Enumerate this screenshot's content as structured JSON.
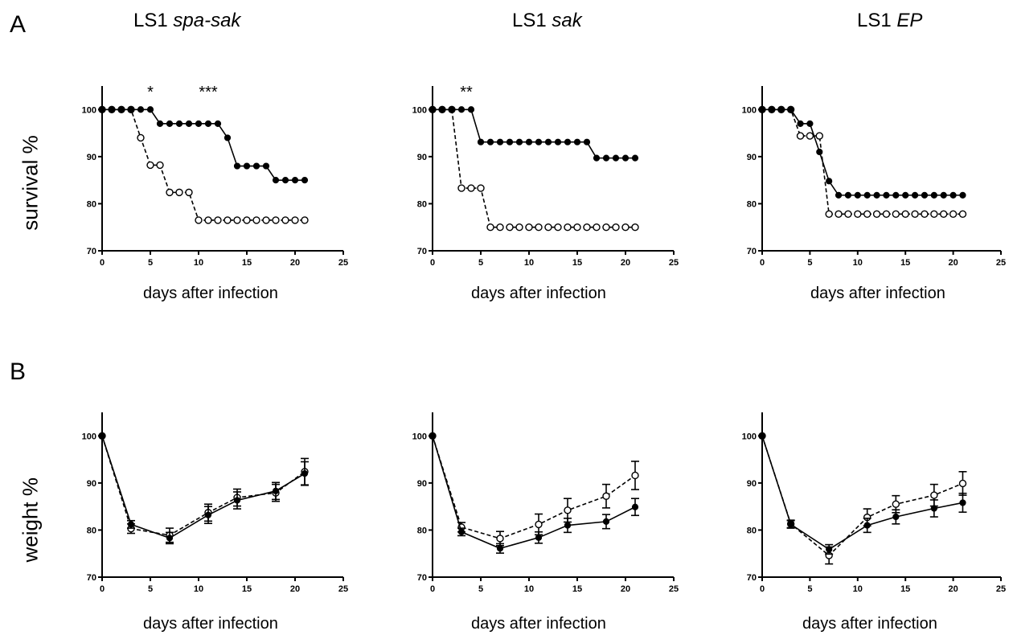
{
  "figure": {
    "panel_a": "A",
    "panel_b": "B",
    "columns": [
      {
        "title_plain": "LS1 ",
        "title_italic": "spa-sak"
      },
      {
        "title_plain": "LS1 ",
        "title_italic": "sak"
      },
      {
        "title_plain": "LS1 ",
        "title_italic": "EP"
      }
    ],
    "row_labels": {
      "survival": "survival %",
      "weight": "weight %"
    },
    "xlabel": "days after infection"
  },
  "chart_data": [
    {
      "type": "line",
      "panel": "A",
      "title": "LS1 spa-sak",
      "xlabel": "days after infection",
      "ylabel": "survival %",
      "xlim": [
        0,
        25
      ],
      "ylim": [
        70,
        105
      ],
      "xticks": [
        0,
        5,
        10,
        15,
        20,
        25
      ],
      "yticks": [
        70,
        80,
        90,
        100
      ],
      "annotations": [
        {
          "x": 5,
          "text": "*"
        },
        {
          "x": 11,
          "text": "***"
        }
      ],
      "series": [
        {
          "marker": "filled",
          "linestyle": "solid",
          "x": [
            0,
            1,
            2,
            3,
            4,
            5,
            6,
            7,
            8,
            9,
            10,
            11,
            12,
            13,
            14,
            15,
            16,
            17,
            18,
            19,
            20,
            21
          ],
          "y": [
            100,
            100,
            100,
            100,
            100,
            100,
            97,
            97,
            97,
            97,
            97,
            97,
            97,
            94,
            88,
            88,
            88,
            88,
            85,
            85,
            85,
            85
          ]
        },
        {
          "marker": "open",
          "linestyle": "dashed",
          "x": [
            0,
            1,
            2,
            3,
            4,
            5,
            6,
            7,
            8,
            9,
            10,
            11,
            12,
            13,
            14,
            15,
            16,
            17,
            18,
            19,
            20,
            21
          ],
          "y": [
            100,
            100,
            100,
            100,
            94,
            88.2,
            88.2,
            82.4,
            82.4,
            82.4,
            76.5,
            76.5,
            76.5,
            76.5,
            76.5,
            76.5,
            76.5,
            76.5,
            76.5,
            76.5,
            76.5,
            76.5
          ]
        }
      ]
    },
    {
      "type": "line",
      "panel": "A",
      "title": "LS1 sak",
      "xlabel": "days after infection",
      "ylabel": "survival %",
      "xlim": [
        0,
        25
      ],
      "ylim": [
        70,
        105
      ],
      "xticks": [
        0,
        5,
        10,
        15,
        20,
        25
      ],
      "yticks": [
        70,
        80,
        90,
        100
      ],
      "annotations": [
        {
          "x": 3.5,
          "text": "**"
        }
      ],
      "series": [
        {
          "marker": "filled",
          "linestyle": "solid",
          "x": [
            0,
            1,
            2,
            3,
            4,
            5,
            6,
            7,
            8,
            9,
            10,
            11,
            12,
            13,
            14,
            15,
            16,
            17,
            18,
            19,
            20,
            21
          ],
          "y": [
            100,
            100,
            100,
            100,
            100,
            93.1,
            93.1,
            93.1,
            93.1,
            93.1,
            93.1,
            93.1,
            93.1,
            93.1,
            93.1,
            93.1,
            93.1,
            89.7,
            89.7,
            89.7,
            89.7,
            89.7
          ]
        },
        {
          "marker": "open",
          "linestyle": "dashed",
          "x": [
            0,
            1,
            2,
            3,
            4,
            5,
            6,
            7,
            8,
            9,
            10,
            11,
            12,
            13,
            14,
            15,
            16,
            17,
            18,
            19,
            20,
            21
          ],
          "y": [
            100,
            100,
            100,
            83.3,
            83.3,
            83.3,
            75,
            75,
            75,
            75,
            75,
            75,
            75,
            75,
            75,
            75,
            75,
            75,
            75,
            75,
            75,
            75
          ]
        }
      ]
    },
    {
      "type": "line",
      "panel": "A",
      "title": "LS1 EP",
      "xlabel": "days after infection",
      "ylabel": "survival %",
      "xlim": [
        0,
        25
      ],
      "ylim": [
        70,
        105
      ],
      "xticks": [
        0,
        5,
        10,
        15,
        20,
        25
      ],
      "yticks": [
        70,
        80,
        90,
        100
      ],
      "annotations": [],
      "series": [
        {
          "marker": "filled",
          "linestyle": "solid",
          "x": [
            0,
            1,
            2,
            3,
            4,
            5,
            6,
            7,
            8,
            9,
            10,
            11,
            12,
            13,
            14,
            15,
            16,
            17,
            18,
            19,
            20,
            21
          ],
          "y": [
            100,
            100,
            100,
            100,
            97,
            97,
            91,
            84.8,
            81.8,
            81.8,
            81.8,
            81.8,
            81.8,
            81.8,
            81.8,
            81.8,
            81.8,
            81.8,
            81.8,
            81.8,
            81.8,
            81.8
          ]
        },
        {
          "marker": "open",
          "linestyle": "dashed",
          "x": [
            0,
            1,
            2,
            3,
            4,
            5,
            6,
            7,
            8,
            9,
            10,
            11,
            12,
            13,
            14,
            15,
            16,
            17,
            18,
            19,
            20,
            21
          ],
          "y": [
            100,
            100,
            100,
            100,
            94.4,
            94.4,
            94.4,
            77.8,
            77.8,
            77.8,
            77.8,
            77.8,
            77.8,
            77.8,
            77.8,
            77.8,
            77.8,
            77.8,
            77.8,
            77.8,
            77.8,
            77.8
          ]
        }
      ]
    },
    {
      "type": "line",
      "panel": "B",
      "title": "LS1 spa-sak",
      "xlabel": "days after infection",
      "ylabel": "weight %",
      "xlim": [
        0,
        25
      ],
      "ylim": [
        70,
        105
      ],
      "xticks": [
        0,
        5,
        10,
        15,
        20,
        25
      ],
      "yticks": [
        70,
        80,
        90,
        100
      ],
      "annotations": [],
      "series": [
        {
          "marker": "filled",
          "linestyle": "solid",
          "x": [
            0,
            3,
            7,
            11,
            14,
            18,
            21
          ],
          "y": [
            100,
            81.2,
            78.3,
            83.2,
            86.3,
            88.3,
            92
          ],
          "err": [
            0,
            0.8,
            1.2,
            1.8,
            1.8,
            1.8,
            2.5
          ]
        },
        {
          "marker": "open",
          "linestyle": "dashed",
          "x": [
            0,
            3,
            7,
            11,
            14,
            18,
            21
          ],
          "y": [
            100,
            80.3,
            78.9,
            83.7,
            86.9,
            87.9,
            92.4
          ],
          "err": [
            0,
            1,
            1.5,
            1.8,
            1.8,
            1.8,
            2.8
          ]
        }
      ]
    },
    {
      "type": "line",
      "panel": "B",
      "title": "LS1 sak",
      "xlabel": "days after infection",
      "ylabel": "weight %",
      "xlim": [
        0,
        25
      ],
      "ylim": [
        70,
        105
      ],
      "xticks": [
        0,
        5,
        10,
        15,
        20,
        25
      ],
      "yticks": [
        70,
        80,
        90,
        100
      ],
      "annotations": [],
      "series": [
        {
          "marker": "filled",
          "linestyle": "solid",
          "x": [
            0,
            3,
            7,
            11,
            14,
            18,
            21
          ],
          "y": [
            100,
            79.6,
            76.1,
            78.4,
            81,
            81.8,
            84.9
          ],
          "err": [
            0,
            0.8,
            1,
            1.2,
            1.5,
            1.5,
            1.8
          ]
        },
        {
          "marker": "open",
          "linestyle": "dashed",
          "x": [
            0,
            3,
            7,
            11,
            14,
            18,
            21
          ],
          "y": [
            100,
            80.6,
            78.2,
            81.2,
            84.2,
            87.2,
            91.6
          ],
          "err": [
            0,
            1,
            1.5,
            2.2,
            2.5,
            2.5,
            3
          ]
        }
      ]
    },
    {
      "type": "line",
      "panel": "B",
      "title": "LS1 EP",
      "xlabel": "days after infection",
      "ylabel": "weight %",
      "xlim": [
        0,
        25
      ],
      "ylim": [
        70,
        105
      ],
      "xticks": [
        0,
        5,
        10,
        15,
        20,
        25
      ],
      "yticks": [
        70,
        80,
        90,
        100
      ],
      "annotations": [],
      "series": [
        {
          "marker": "filled",
          "linestyle": "solid",
          "x": [
            0,
            3,
            7,
            11,
            14,
            18,
            21
          ],
          "y": [
            100,
            81.2,
            75.9,
            81,
            82.8,
            84.6,
            85.8
          ],
          "err": [
            0,
            0.8,
            1,
            1.5,
            1.5,
            1.8,
            2
          ]
        },
        {
          "marker": "open",
          "linestyle": "dashed",
          "x": [
            0,
            3,
            7,
            11,
            14,
            18,
            21
          ],
          "y": [
            100,
            81.3,
            74.6,
            82.7,
            85.5,
            87.4,
            89.9
          ],
          "err": [
            0,
            0.8,
            1.8,
            1.8,
            1.8,
            2.3,
            2.5
          ]
        }
      ]
    }
  ]
}
